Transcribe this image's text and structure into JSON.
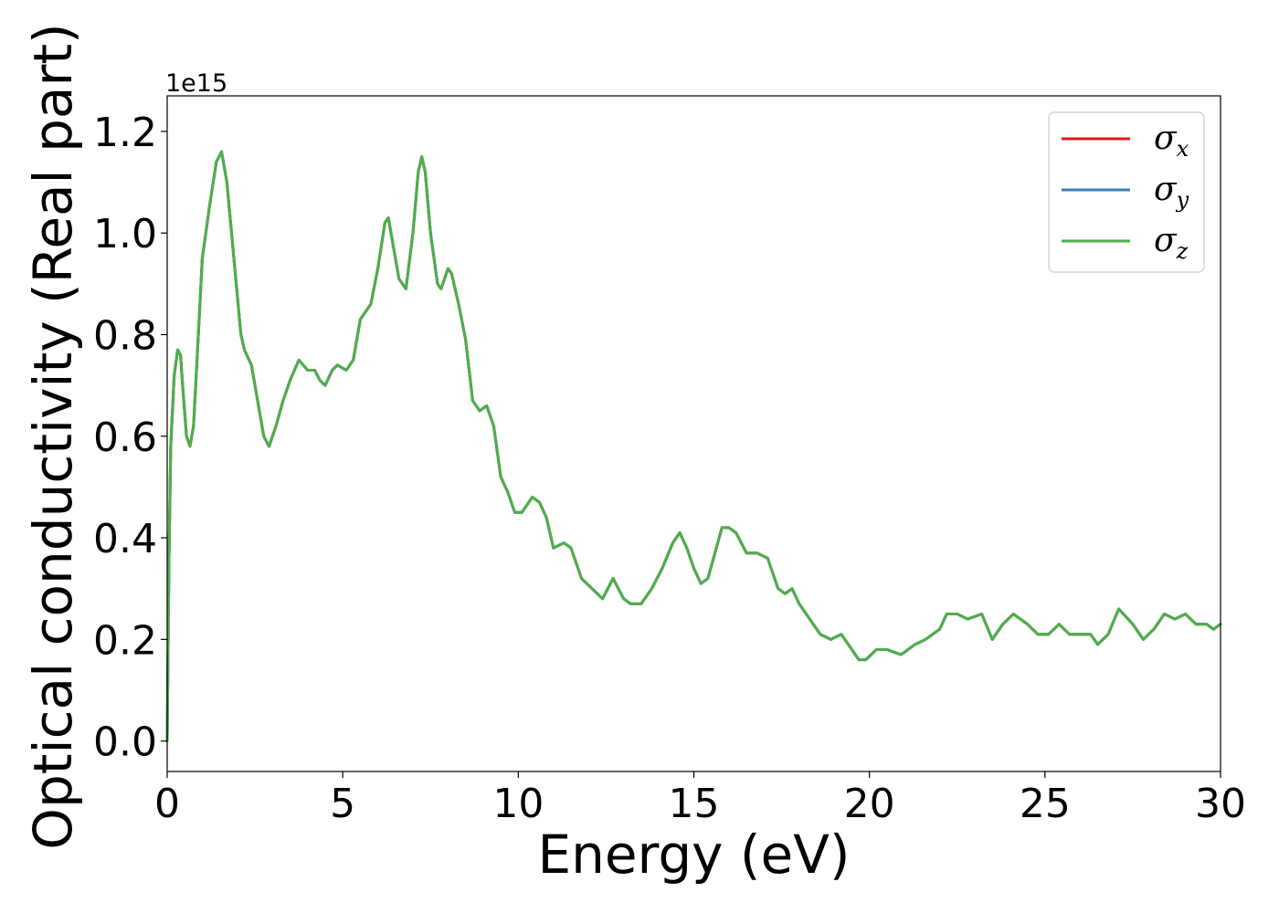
{
  "chart_data": {
    "type": "line",
    "title": "",
    "xlabel": "Energy (eV)",
    "ylabel": "Optical conductivity (Real part)",
    "y_offset_text": "1e15",
    "xlim": [
      0,
      30
    ],
    "ylim": [
      -0.06,
      1.27
    ],
    "xticks": [
      0,
      5,
      10,
      15,
      20,
      25,
      30
    ],
    "xtick_labels": [
      "0",
      "5",
      "10",
      "15",
      "20",
      "25",
      "30"
    ],
    "yticks": [
      0.0,
      0.2,
      0.4,
      0.6,
      0.8,
      1.0,
      1.2
    ],
    "ytick_labels": [
      "0.0",
      "0.2",
      "0.4",
      "0.6",
      "0.8",
      "1.0",
      "1.2"
    ],
    "grid": false,
    "legend_position": "top-right",
    "x": [
      0,
      0.05,
      0.1,
      0.2,
      0.3,
      0.38,
      0.45,
      0.55,
      0.65,
      0.75,
      0.85,
      1.0,
      1.2,
      1.4,
      1.55,
      1.7,
      1.9,
      2.1,
      2.2,
      2.4,
      2.6,
      2.75,
      2.9,
      3.1,
      3.3,
      3.5,
      3.75,
      4.0,
      4.2,
      4.35,
      4.5,
      4.7,
      4.85,
      5.1,
      5.3,
      5.5,
      5.6,
      5.8,
      6.0,
      6.2,
      6.3,
      6.45,
      6.6,
      6.8,
      7.0,
      7.15,
      7.25,
      7.35,
      7.5,
      7.7,
      7.8,
      8.0,
      8.1,
      8.3,
      8.5,
      8.7,
      8.9,
      9.1,
      9.3,
      9.5,
      9.7,
      9.9,
      10.1,
      10.4,
      10.6,
      10.8,
      11.0,
      11.3,
      11.5,
      11.8,
      12.1,
      12.4,
      12.7,
      13.0,
      13.2,
      13.5,
      13.8,
      14.1,
      14.4,
      14.6,
      14.8,
      15.0,
      15.2,
      15.4,
      15.6,
      15.8,
      16.0,
      16.2,
      16.5,
      16.8,
      17.1,
      17.4,
      17.6,
      17.8,
      18.0,
      18.3,
      18.6,
      18.9,
      19.2,
      19.5,
      19.7,
      19.9,
      20.2,
      20.5,
      20.9,
      21.3,
      21.6,
      22.0,
      22.2,
      22.5,
      22.8,
      23.2,
      23.5,
      23.8,
      24.1,
      24.5,
      24.8,
      25.1,
      25.4,
      25.7,
      26.0,
      26.3,
      26.5,
      26.8,
      27.1,
      27.5,
      27.8,
      28.1,
      28.4,
      28.7,
      29.0,
      29.3,
      29.6,
      29.8,
      30.0
    ],
    "series": [
      {
        "name": "σx",
        "color": "#e41a1c",
        "values": [
          0.0,
          0.35,
          0.58,
          0.72,
          0.77,
          0.76,
          0.69,
          0.6,
          0.58,
          0.62,
          0.75,
          0.95,
          1.05,
          1.14,
          1.16,
          1.1,
          0.95,
          0.8,
          0.77,
          0.74,
          0.66,
          0.6,
          0.58,
          0.62,
          0.67,
          0.71,
          0.75,
          0.73,
          0.73,
          0.71,
          0.7,
          0.73,
          0.74,
          0.73,
          0.75,
          0.83,
          0.84,
          0.86,
          0.93,
          1.02,
          1.03,
          0.97,
          0.91,
          0.89,
          1.0,
          1.12,
          1.15,
          1.12,
          1.0,
          0.9,
          0.89,
          0.93,
          0.92,
          0.86,
          0.79,
          0.67,
          0.65,
          0.66,
          0.62,
          0.52,
          0.49,
          0.45,
          0.45,
          0.48,
          0.47,
          0.44,
          0.38,
          0.39,
          0.38,
          0.32,
          0.3,
          0.28,
          0.32,
          0.28,
          0.27,
          0.27,
          0.3,
          0.34,
          0.39,
          0.41,
          0.38,
          0.34,
          0.31,
          0.32,
          0.37,
          0.42,
          0.42,
          0.41,
          0.37,
          0.37,
          0.36,
          0.3,
          0.29,
          0.3,
          0.27,
          0.24,
          0.21,
          0.2,
          0.21,
          0.18,
          0.16,
          0.16,
          0.18,
          0.18,
          0.17,
          0.19,
          0.2,
          0.22,
          0.25,
          0.25,
          0.24,
          0.25,
          0.2,
          0.23,
          0.25,
          0.23,
          0.21,
          0.21,
          0.23,
          0.21,
          0.21,
          0.21,
          0.19,
          0.21,
          0.26,
          0.23,
          0.2,
          0.22,
          0.25,
          0.24,
          0.25,
          0.23,
          0.23,
          0.22,
          0.23
        ]
      },
      {
        "name": "σy",
        "color": "#377eb8",
        "values": [
          0.0,
          0.35,
          0.58,
          0.72,
          0.77,
          0.76,
          0.69,
          0.6,
          0.58,
          0.62,
          0.75,
          0.95,
          1.05,
          1.14,
          1.16,
          1.1,
          0.95,
          0.8,
          0.77,
          0.74,
          0.66,
          0.6,
          0.58,
          0.62,
          0.67,
          0.71,
          0.75,
          0.73,
          0.73,
          0.71,
          0.7,
          0.73,
          0.74,
          0.73,
          0.75,
          0.83,
          0.84,
          0.86,
          0.93,
          1.02,
          1.03,
          0.97,
          0.91,
          0.89,
          1.0,
          1.12,
          1.15,
          1.12,
          1.0,
          0.9,
          0.89,
          0.93,
          0.92,
          0.86,
          0.79,
          0.67,
          0.65,
          0.66,
          0.62,
          0.52,
          0.49,
          0.45,
          0.45,
          0.48,
          0.47,
          0.44,
          0.38,
          0.39,
          0.38,
          0.32,
          0.3,
          0.28,
          0.32,
          0.28,
          0.27,
          0.27,
          0.3,
          0.34,
          0.39,
          0.41,
          0.38,
          0.34,
          0.31,
          0.32,
          0.37,
          0.42,
          0.42,
          0.41,
          0.37,
          0.37,
          0.36,
          0.3,
          0.29,
          0.3,
          0.27,
          0.24,
          0.21,
          0.2,
          0.21,
          0.18,
          0.16,
          0.16,
          0.18,
          0.18,
          0.17,
          0.19,
          0.2,
          0.22,
          0.25,
          0.25,
          0.24,
          0.25,
          0.2,
          0.23,
          0.25,
          0.23,
          0.21,
          0.21,
          0.23,
          0.21,
          0.21,
          0.21,
          0.19,
          0.21,
          0.26,
          0.23,
          0.2,
          0.22,
          0.25,
          0.24,
          0.25,
          0.23,
          0.23,
          0.22,
          0.23
        ]
      },
      {
        "name": "σz",
        "color": "#4daf4a",
        "values": [
          0.0,
          0.35,
          0.58,
          0.72,
          0.77,
          0.76,
          0.69,
          0.6,
          0.58,
          0.62,
          0.75,
          0.95,
          1.05,
          1.14,
          1.16,
          1.1,
          0.95,
          0.8,
          0.77,
          0.74,
          0.66,
          0.6,
          0.58,
          0.62,
          0.67,
          0.71,
          0.75,
          0.73,
          0.73,
          0.71,
          0.7,
          0.73,
          0.74,
          0.73,
          0.75,
          0.83,
          0.84,
          0.86,
          0.93,
          1.02,
          1.03,
          0.97,
          0.91,
          0.89,
          1.0,
          1.12,
          1.15,
          1.12,
          1.0,
          0.9,
          0.89,
          0.93,
          0.92,
          0.86,
          0.79,
          0.67,
          0.65,
          0.66,
          0.62,
          0.52,
          0.49,
          0.45,
          0.45,
          0.48,
          0.47,
          0.44,
          0.38,
          0.39,
          0.38,
          0.32,
          0.3,
          0.28,
          0.32,
          0.28,
          0.27,
          0.27,
          0.3,
          0.34,
          0.39,
          0.41,
          0.38,
          0.34,
          0.31,
          0.32,
          0.37,
          0.42,
          0.42,
          0.41,
          0.37,
          0.37,
          0.36,
          0.3,
          0.29,
          0.3,
          0.27,
          0.24,
          0.21,
          0.2,
          0.21,
          0.18,
          0.16,
          0.16,
          0.18,
          0.18,
          0.17,
          0.19,
          0.2,
          0.22,
          0.25,
          0.25,
          0.24,
          0.25,
          0.2,
          0.23,
          0.25,
          0.23,
          0.21,
          0.21,
          0.23,
          0.21,
          0.21,
          0.21,
          0.19,
          0.21,
          0.26,
          0.23,
          0.2,
          0.22,
          0.25,
          0.24,
          0.25,
          0.23,
          0.23,
          0.22,
          0.23
        ]
      }
    ],
    "legend": [
      {
        "symbol": "σ",
        "subscript": "x",
        "color": "#e41a1c"
      },
      {
        "symbol": "σ",
        "subscript": "y",
        "color": "#377eb8"
      },
      {
        "symbol": "σ",
        "subscript": "z",
        "color": "#4daf4a"
      }
    ]
  }
}
